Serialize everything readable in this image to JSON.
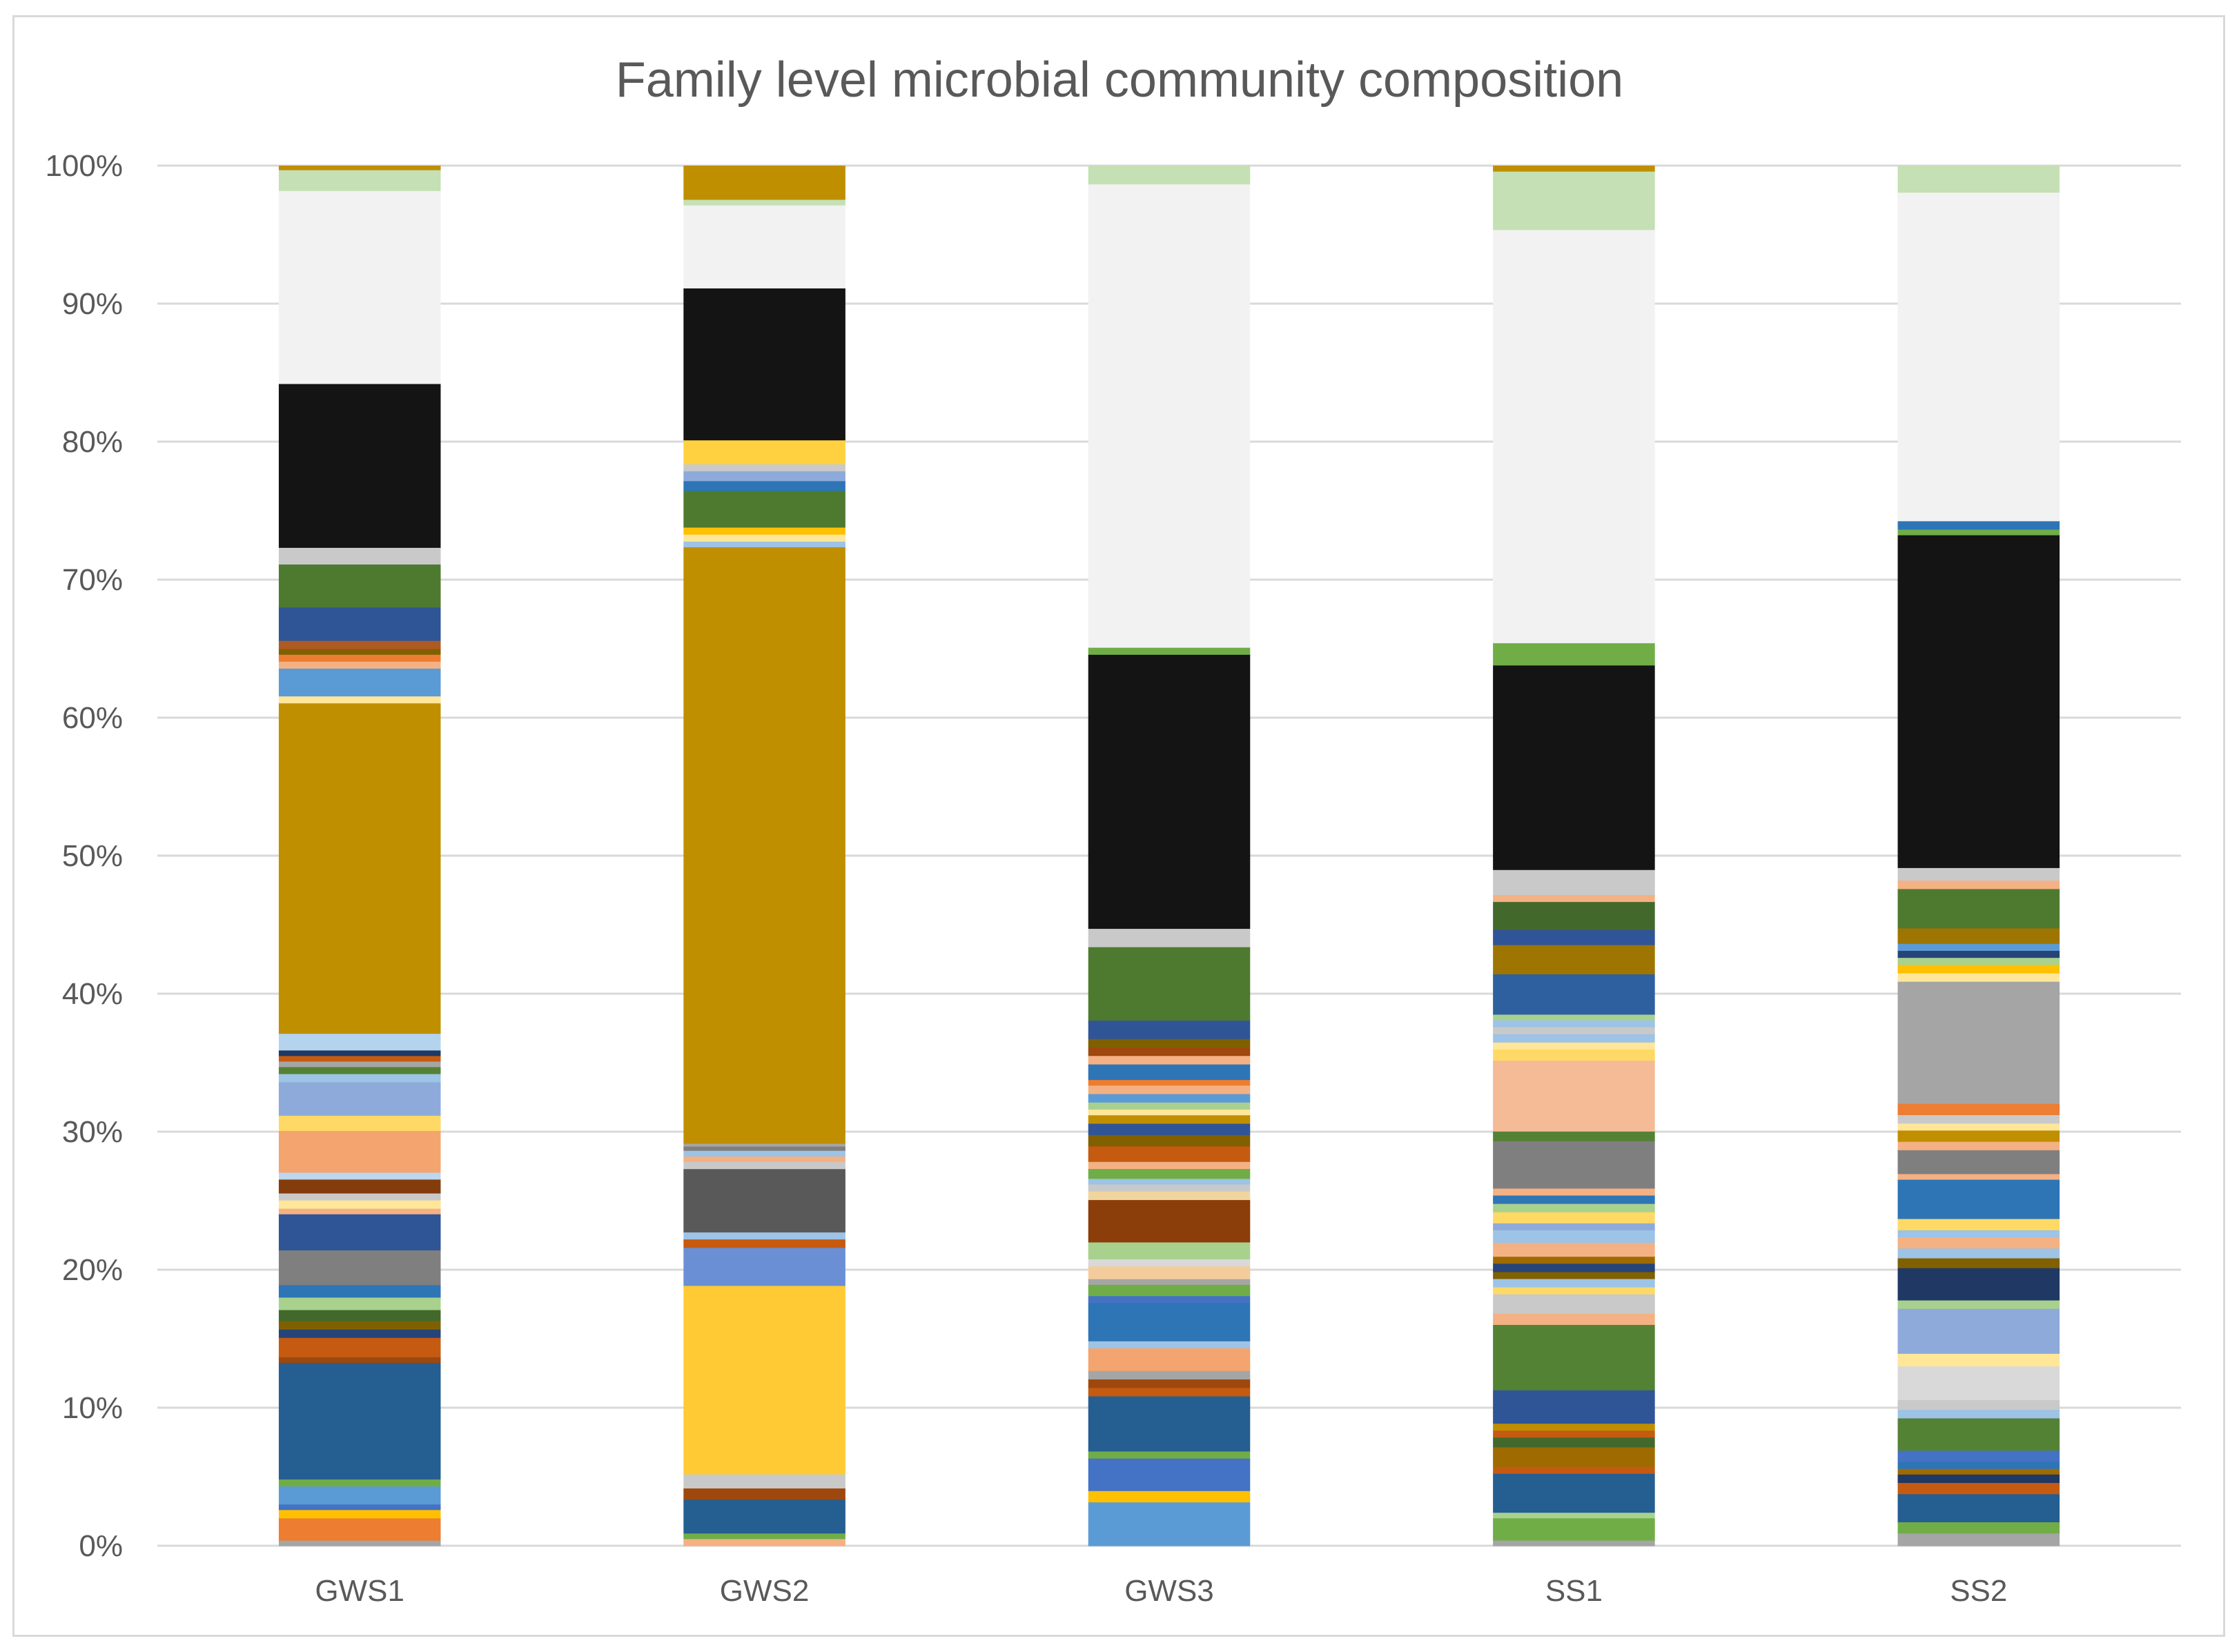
{
  "chart_data": {
    "type": "bar",
    "stacked": true,
    "percent_stacked": true,
    "title": "Family level microbial community composition",
    "xlabel": "",
    "ylabel": "",
    "ylim": [
      0,
      100
    ],
    "y_ticks": [
      "0%",
      "10%",
      "20%",
      "30%",
      "40%",
      "50%",
      "60%",
      "70%",
      "80%",
      "90%",
      "100%"
    ],
    "grid": true,
    "legend": "none",
    "categories": [
      "GWS1",
      "GWS2",
      "GWS3",
      "SS1",
      "SS2"
    ],
    "stacks": [
      [
        {
          "value": 0.4,
          "color": "#a5a5a5"
        },
        {
          "value": 1.6,
          "color": "#ed7d31"
        },
        {
          "value": 0.6,
          "color": "#ffc000"
        },
        {
          "value": 0.4,
          "color": "#4472c4"
        },
        {
          "value": 1.3,
          "color": "#5b9bd5"
        },
        {
          "value": 0.5,
          "color": "#70ad47"
        },
        {
          "value": 8.4,
          "color": "#255e91"
        },
        {
          "value": 0.4,
          "color": "#9e480e"
        },
        {
          "value": 1.4,
          "color": "#c55a11"
        },
        {
          "value": 0.6,
          "color": "#264478"
        },
        {
          "value": 0.6,
          "color": "#7f6000"
        },
        {
          "value": 0.8,
          "color": "#43682b"
        },
        {
          "value": 0.9,
          "color": "#a9d18e"
        },
        {
          "value": 0.9,
          "color": "#2e75b6"
        },
        {
          "value": 2.5,
          "color": "#7f7f7f"
        },
        {
          "value": 2.6,
          "color": "#2f5597"
        },
        {
          "value": 0.4,
          "color": "#f4b183"
        },
        {
          "value": 0.6,
          "color": "#ffe699"
        },
        {
          "value": 0.5,
          "color": "#c9c9c9"
        },
        {
          "value": 1.0,
          "color": "#843c0c"
        },
        {
          "value": 0.5,
          "color": "#bdd7ee"
        },
        {
          "value": 3.0,
          "color": "#f4a46e"
        },
        {
          "value": 1.1,
          "color": "#ffd966"
        },
        {
          "value": 2.4,
          "color": "#8eaadb"
        },
        {
          "value": 0.6,
          "color": "#9dc3e6"
        },
        {
          "value": 0.5,
          "color": "#548235"
        },
        {
          "value": 0.4,
          "color": "#a5a5a5"
        },
        {
          "value": 0.4,
          "color": "#c55a11"
        },
        {
          "value": 0.4,
          "color": "#203864"
        },
        {
          "value": 1.2,
          "color": "#b4d4ee"
        },
        {
          "value": 23.8,
          "color": "#bf8f00"
        },
        {
          "value": 0.5,
          "color": "#ffe699"
        },
        {
          "value": 2.0,
          "color": "#5b9bd5"
        },
        {
          "value": 0.5,
          "color": "#f4b183"
        },
        {
          "value": 0.5,
          "color": "#ed7d31"
        },
        {
          "value": 0.4,
          "color": "#806000"
        },
        {
          "value": 0.6,
          "color": "#ae5a21"
        },
        {
          "value": 2.4,
          "color": "#2f5597"
        },
        {
          "value": 3.1,
          "color": "#4e7a2f"
        },
        {
          "value": 1.2,
          "color": "#c9c9c9"
        },
        {
          "value": 11.8,
          "color": "#141414"
        },
        {
          "value": 13.9,
          "color": "#f2f2f2"
        },
        {
          "value": 1.5,
          "color": "#c5e0b4"
        },
        {
          "value": 0.3,
          "color": "#bf8f00"
        }
      ],
      [
        {
          "value": 0.5,
          "color": "#f4b183"
        },
        {
          "value": 0.4,
          "color": "#70ad47"
        },
        {
          "value": 2.4,
          "color": "#255e91"
        },
        {
          "value": 0.8,
          "color": "#9e480e"
        },
        {
          "value": 1.0,
          "color": "#c9c9c9"
        },
        {
          "value": 13.4,
          "color": "#ffca33"
        },
        {
          "value": 2.7,
          "color": "#6a8fd5"
        },
        {
          "value": 0.6,
          "color": "#c55a11"
        },
        {
          "value": 0.5,
          "color": "#9dc3e6"
        },
        {
          "value": 4.5,
          "color": "#595959"
        },
        {
          "value": 0.5,
          "color": "#c9c9c9"
        },
        {
          "value": 0.4,
          "color": "#f4b183"
        },
        {
          "value": 0.4,
          "color": "#9dc3e6"
        },
        {
          "value": 0.3,
          "color": "#7f7f7f"
        },
        {
          "value": 0.2,
          "color": "#a5a5a5"
        },
        {
          "value": 42.4,
          "color": "#bf8f00"
        },
        {
          "value": 0.4,
          "color": "#9dc3e6"
        },
        {
          "value": 0.5,
          "color": "#ffe699"
        },
        {
          "value": 0.5,
          "color": "#ffc000"
        },
        {
          "value": 2.6,
          "color": "#4e7a2f"
        },
        {
          "value": 0.7,
          "color": "#2e75b6"
        },
        {
          "value": 0.7,
          "color": "#8eaadb"
        },
        {
          "value": 0.5,
          "color": "#c9c9c9"
        },
        {
          "value": 1.7,
          "color": "#ffd140"
        },
        {
          "value": 10.8,
          "color": "#141414"
        },
        {
          "value": 5.9,
          "color": "#f2f2f2"
        },
        {
          "value": 0.4,
          "color": "#c5e0b4"
        },
        {
          "value": 2.4,
          "color": "#bf8f00"
        }
      ],
      [
        {
          "value": 3.1,
          "color": "#5b9bd5"
        },
        {
          "value": 0.8,
          "color": "#ffc000"
        },
        {
          "value": 2.3,
          "color": "#4472c4"
        },
        {
          "value": 0.5,
          "color": "#70ad47"
        },
        {
          "value": 3.9,
          "color": "#255e91"
        },
        {
          "value": 0.6,
          "color": "#c55a11"
        },
        {
          "value": 0.6,
          "color": "#9e480e"
        },
        {
          "value": 0.6,
          "color": "#a5a5a5"
        },
        {
          "value": 1.6,
          "color": "#f4a46e"
        },
        {
          "value": 0.5,
          "color": "#9dc3e6"
        },
        {
          "value": 2.7,
          "color": "#2e75b6"
        },
        {
          "value": 0.5,
          "color": "#4472c4"
        },
        {
          "value": 0.8,
          "color": "#70ad47"
        },
        {
          "value": 0.4,
          "color": "#a5a5a5"
        },
        {
          "value": 0.9,
          "color": "#f4cc9c"
        },
        {
          "value": 0.5,
          "color": "#d9d9d9"
        },
        {
          "value": 1.2,
          "color": "#a9d18e"
        },
        {
          "value": 3.0,
          "color": "#8b3d0a"
        },
        {
          "value": 0.6,
          "color": "#f0d59e"
        },
        {
          "value": 0.5,
          "color": "#c9c9c9"
        },
        {
          "value": 0.4,
          "color": "#9dc3e6"
        },
        {
          "value": 0.7,
          "color": "#70ad47"
        },
        {
          "value": 0.5,
          "color": "#f4b183"
        },
        {
          "value": 1.1,
          "color": "#c55a11"
        },
        {
          "value": 0.8,
          "color": "#806000"
        },
        {
          "value": 0.8,
          "color": "#2f5597"
        },
        {
          "value": 0.6,
          "color": "#bf8f00"
        },
        {
          "value": 0.4,
          "color": "#ffe699"
        },
        {
          "value": 0.5,
          "color": "#a9d18e"
        },
        {
          "value": 0.6,
          "color": "#5b9bd5"
        },
        {
          "value": 0.6,
          "color": "#f4b183"
        },
        {
          "value": 0.4,
          "color": "#ed7d31"
        },
        {
          "value": 1.1,
          "color": "#2e75b6"
        },
        {
          "value": 0.6,
          "color": "#f4b183"
        },
        {
          "value": 0.6,
          "color": "#9e480e"
        },
        {
          "value": 0.6,
          "color": "#7f6000"
        },
        {
          "value": 1.3,
          "color": "#2f5597"
        },
        {
          "value": 5.2,
          "color": "#4e7a2f"
        },
        {
          "value": 1.3,
          "color": "#c9c9c9"
        },
        {
          "value": 19.4,
          "color": "#141414"
        },
        {
          "value": 0.5,
          "color": "#70ad47"
        },
        {
          "value": 32.8,
          "color": "#f2f2f2"
        },
        {
          "value": 1.3,
          "color": "#c5e0b4"
        }
      ],
      [
        {
          "value": 0.4,
          "color": "#a5a5a5"
        },
        {
          "value": 1.6,
          "color": "#70ad47"
        },
        {
          "value": 0.4,
          "color": "#a9d18e"
        },
        {
          "value": 2.8,
          "color": "#255e91"
        },
        {
          "value": 0.5,
          "color": "#c55a11"
        },
        {
          "value": 1.4,
          "color": "#9e6b00"
        },
        {
          "value": 0.7,
          "color": "#43682b"
        },
        {
          "value": 0.5,
          "color": "#c55a11"
        },
        {
          "value": 0.5,
          "color": "#bf8f00"
        },
        {
          "value": 2.4,
          "color": "#2f5597"
        },
        {
          "value": 4.7,
          "color": "#548235"
        },
        {
          "value": 0.8,
          "color": "#f4b183"
        },
        {
          "value": 1.4,
          "color": "#c9c9c9"
        },
        {
          "value": 0.5,
          "color": "#ffd966"
        },
        {
          "value": 0.6,
          "color": "#9dc3e6"
        },
        {
          "value": 0.5,
          "color": "#806000"
        },
        {
          "value": 0.6,
          "color": "#264478"
        },
        {
          "value": 0.5,
          "color": "#9e6b00"
        },
        {
          "value": 1.0,
          "color": "#f4b183"
        },
        {
          "value": 0.9,
          "color": "#9dc3e6"
        },
        {
          "value": 0.5,
          "color": "#8eaadb"
        },
        {
          "value": 0.8,
          "color": "#ffd966"
        },
        {
          "value": 0.6,
          "color": "#a9d18e"
        },
        {
          "value": 0.6,
          "color": "#2e75b6"
        },
        {
          "value": 0.5,
          "color": "#f4b183"
        },
        {
          "value": 3.4,
          "color": "#7f7f7f"
        },
        {
          "value": 0.7,
          "color": "#548235"
        },
        {
          "value": 5.1,
          "color": "#f5ba96"
        },
        {
          "value": 0.8,
          "color": "#ffd966"
        },
        {
          "value": 0.5,
          "color": "#ffe699"
        },
        {
          "value": 0.6,
          "color": "#9dc3e6"
        },
        {
          "value": 0.5,
          "color": "#c9c9c9"
        },
        {
          "value": 0.5,
          "color": "#9dc3e6"
        },
        {
          "value": 0.4,
          "color": "#a9d18e"
        },
        {
          "value": 2.9,
          "color": "#2e60a0"
        },
        {
          "value": 2.1,
          "color": "#9e7500"
        },
        {
          "value": 1.1,
          "color": "#2f5597"
        },
        {
          "value": 2.0,
          "color": "#43682b"
        },
        {
          "value": 0.5,
          "color": "#f4b183"
        },
        {
          "value": 1.8,
          "color": "#c9c9c9"
        },
        {
          "value": 14.7,
          "color": "#141414"
        },
        {
          "value": 1.6,
          "color": "#70ad47"
        },
        {
          "value": 29.7,
          "color": "#f2f2f2"
        },
        {
          "value": 4.2,
          "color": "#c5e0b4"
        },
        {
          "value": 0.4,
          "color": "#bf8f00"
        }
      ],
      [
        {
          "value": 0.9,
          "color": "#a5a5a5"
        },
        {
          "value": 0.8,
          "color": "#70ad47"
        },
        {
          "value": 2.0,
          "color": "#255e91"
        },
        {
          "value": 0.8,
          "color": "#c55a11"
        },
        {
          "value": 0.6,
          "color": "#203864"
        },
        {
          "value": 0.4,
          "color": "#9e6b00"
        },
        {
          "value": 0.5,
          "color": "#2e75b6"
        },
        {
          "value": 0.8,
          "color": "#4472c4"
        },
        {
          "value": 2.3,
          "color": "#548235"
        },
        {
          "value": 0.6,
          "color": "#9dc3e6"
        },
        {
          "value": 0.7,
          "color": "#c9c9c9"
        },
        {
          "value": 2.4,
          "color": "#d9d9d9"
        },
        {
          "value": 0.9,
          "color": "#ffe699"
        },
        {
          "value": 3.2,
          "color": "#8eaadb"
        },
        {
          "value": 0.6,
          "color": "#a9d18e"
        },
        {
          "value": 0.4,
          "color": "#203864"
        },
        {
          "value": 1.9,
          "color": "#203864"
        },
        {
          "value": 0.7,
          "color": "#806000"
        },
        {
          "value": 0.7,
          "color": "#9dc3e6"
        },
        {
          "value": 0.8,
          "color": "#f4b183"
        },
        {
          "value": 0.5,
          "color": "#9dc3e6"
        },
        {
          "value": 0.8,
          "color": "#ffd966"
        },
        {
          "value": 2.8,
          "color": "#2e75b6"
        },
        {
          "value": 0.4,
          "color": "#f4b183"
        },
        {
          "value": 1.7,
          "color": "#7f7f7f"
        },
        {
          "value": 0.6,
          "color": "#f4b183"
        },
        {
          "value": 0.8,
          "color": "#bf8f00"
        },
        {
          "value": 0.5,
          "color": "#ffe699"
        },
        {
          "value": 0.6,
          "color": "#c9c9c9"
        },
        {
          "value": 0.8,
          "color": "#ed7d31"
        },
        {
          "value": 8.7,
          "color": "#a5a5a5"
        },
        {
          "value": 0.6,
          "color": "#ffe699"
        },
        {
          "value": 0.6,
          "color": "#ffc000"
        },
        {
          "value": 0.5,
          "color": "#a9d18e"
        },
        {
          "value": 0.5,
          "color": "#264478"
        },
        {
          "value": 0.5,
          "color": "#5b9bd5"
        },
        {
          "value": 1.1,
          "color": "#9e7500"
        },
        {
          "value": 2.8,
          "color": "#4e7a2f"
        },
        {
          "value": 0.6,
          "color": "#f4b183"
        },
        {
          "value": 0.9,
          "color": "#c9c9c9"
        },
        {
          "value": 23.7,
          "color": "#141414"
        },
        {
          "value": 0.4,
          "color": "#70ad47"
        },
        {
          "value": 0.6,
          "color": "#2e75b6"
        },
        {
          "value": 23.4,
          "color": "#f2f2f2"
        },
        {
          "value": 1.9,
          "color": "#c5e0b4"
        }
      ]
    ]
  }
}
